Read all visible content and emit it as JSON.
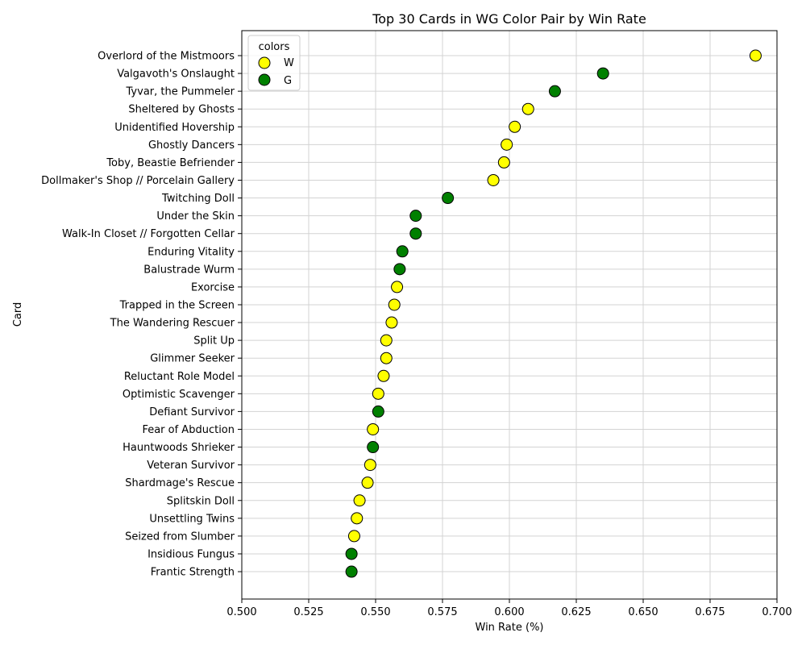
{
  "chart_data": {
    "type": "scatter",
    "title": "Top 30 Cards in WG Color Pair by Win Rate",
    "xlabel": "Win Rate (%)",
    "ylabel": "Card",
    "xlim": [
      0.5,
      0.7
    ],
    "xticks": [
      "0.500",
      "0.525",
      "0.550",
      "0.575",
      "0.600",
      "0.625",
      "0.650",
      "0.675",
      "0.700"
    ],
    "grid": true,
    "legend": {
      "title": "colors",
      "placement": "upper-left",
      "entries": [
        {
          "label": "W",
          "color": "#ffff00"
        },
        {
          "label": "G",
          "color": "#008000"
        }
      ]
    },
    "points": [
      {
        "card": "Overlord of the Mistmoors",
        "win_rate": 0.692,
        "color": "W"
      },
      {
        "card": "Valgavoth's Onslaught",
        "win_rate": 0.635,
        "color": "G"
      },
      {
        "card": "Tyvar, the Pummeler",
        "win_rate": 0.617,
        "color": "G"
      },
      {
        "card": "Sheltered by Ghosts",
        "win_rate": 0.607,
        "color": "W"
      },
      {
        "card": "Unidentified Hovership",
        "win_rate": 0.602,
        "color": "W"
      },
      {
        "card": "Ghostly Dancers",
        "win_rate": 0.599,
        "color": "W"
      },
      {
        "card": "Toby, Beastie Befriender",
        "win_rate": 0.598,
        "color": "W"
      },
      {
        "card": "Dollmaker's Shop // Porcelain Gallery",
        "win_rate": 0.594,
        "color": "W"
      },
      {
        "card": "Twitching Doll",
        "win_rate": 0.577,
        "color": "G"
      },
      {
        "card": "Under the Skin",
        "win_rate": 0.565,
        "color": "G"
      },
      {
        "card": "Walk-In Closet // Forgotten Cellar",
        "win_rate": 0.565,
        "color": "G"
      },
      {
        "card": "Enduring Vitality",
        "win_rate": 0.56,
        "color": "G"
      },
      {
        "card": "Balustrade Wurm",
        "win_rate": 0.559,
        "color": "G"
      },
      {
        "card": "Exorcise",
        "win_rate": 0.558,
        "color": "W"
      },
      {
        "card": "Trapped in the Screen",
        "win_rate": 0.557,
        "color": "W"
      },
      {
        "card": "The Wandering Rescuer",
        "win_rate": 0.556,
        "color": "W"
      },
      {
        "card": "Split Up",
        "win_rate": 0.554,
        "color": "W"
      },
      {
        "card": "Glimmer Seeker",
        "win_rate": 0.554,
        "color": "W"
      },
      {
        "card": "Reluctant Role Model",
        "win_rate": 0.553,
        "color": "W"
      },
      {
        "card": "Optimistic Scavenger",
        "win_rate": 0.551,
        "color": "W"
      },
      {
        "card": "Defiant Survivor",
        "win_rate": 0.551,
        "color": "G"
      },
      {
        "card": "Fear of Abduction",
        "win_rate": 0.549,
        "color": "W"
      },
      {
        "card": "Hauntwoods Shrieker",
        "win_rate": 0.549,
        "color": "G"
      },
      {
        "card": "Veteran Survivor",
        "win_rate": 0.548,
        "color": "W"
      },
      {
        "card": "Shardmage's Rescue",
        "win_rate": 0.547,
        "color": "W"
      },
      {
        "card": "Splitskin Doll",
        "win_rate": 0.544,
        "color": "W"
      },
      {
        "card": "Unsettling Twins",
        "win_rate": 0.543,
        "color": "W"
      },
      {
        "card": "Seized from Slumber",
        "win_rate": 0.542,
        "color": "W"
      },
      {
        "card": "Insidious Fungus",
        "win_rate": 0.541,
        "color": "G"
      },
      {
        "card": "Frantic Strength",
        "win_rate": 0.541,
        "color": "G"
      }
    ]
  }
}
